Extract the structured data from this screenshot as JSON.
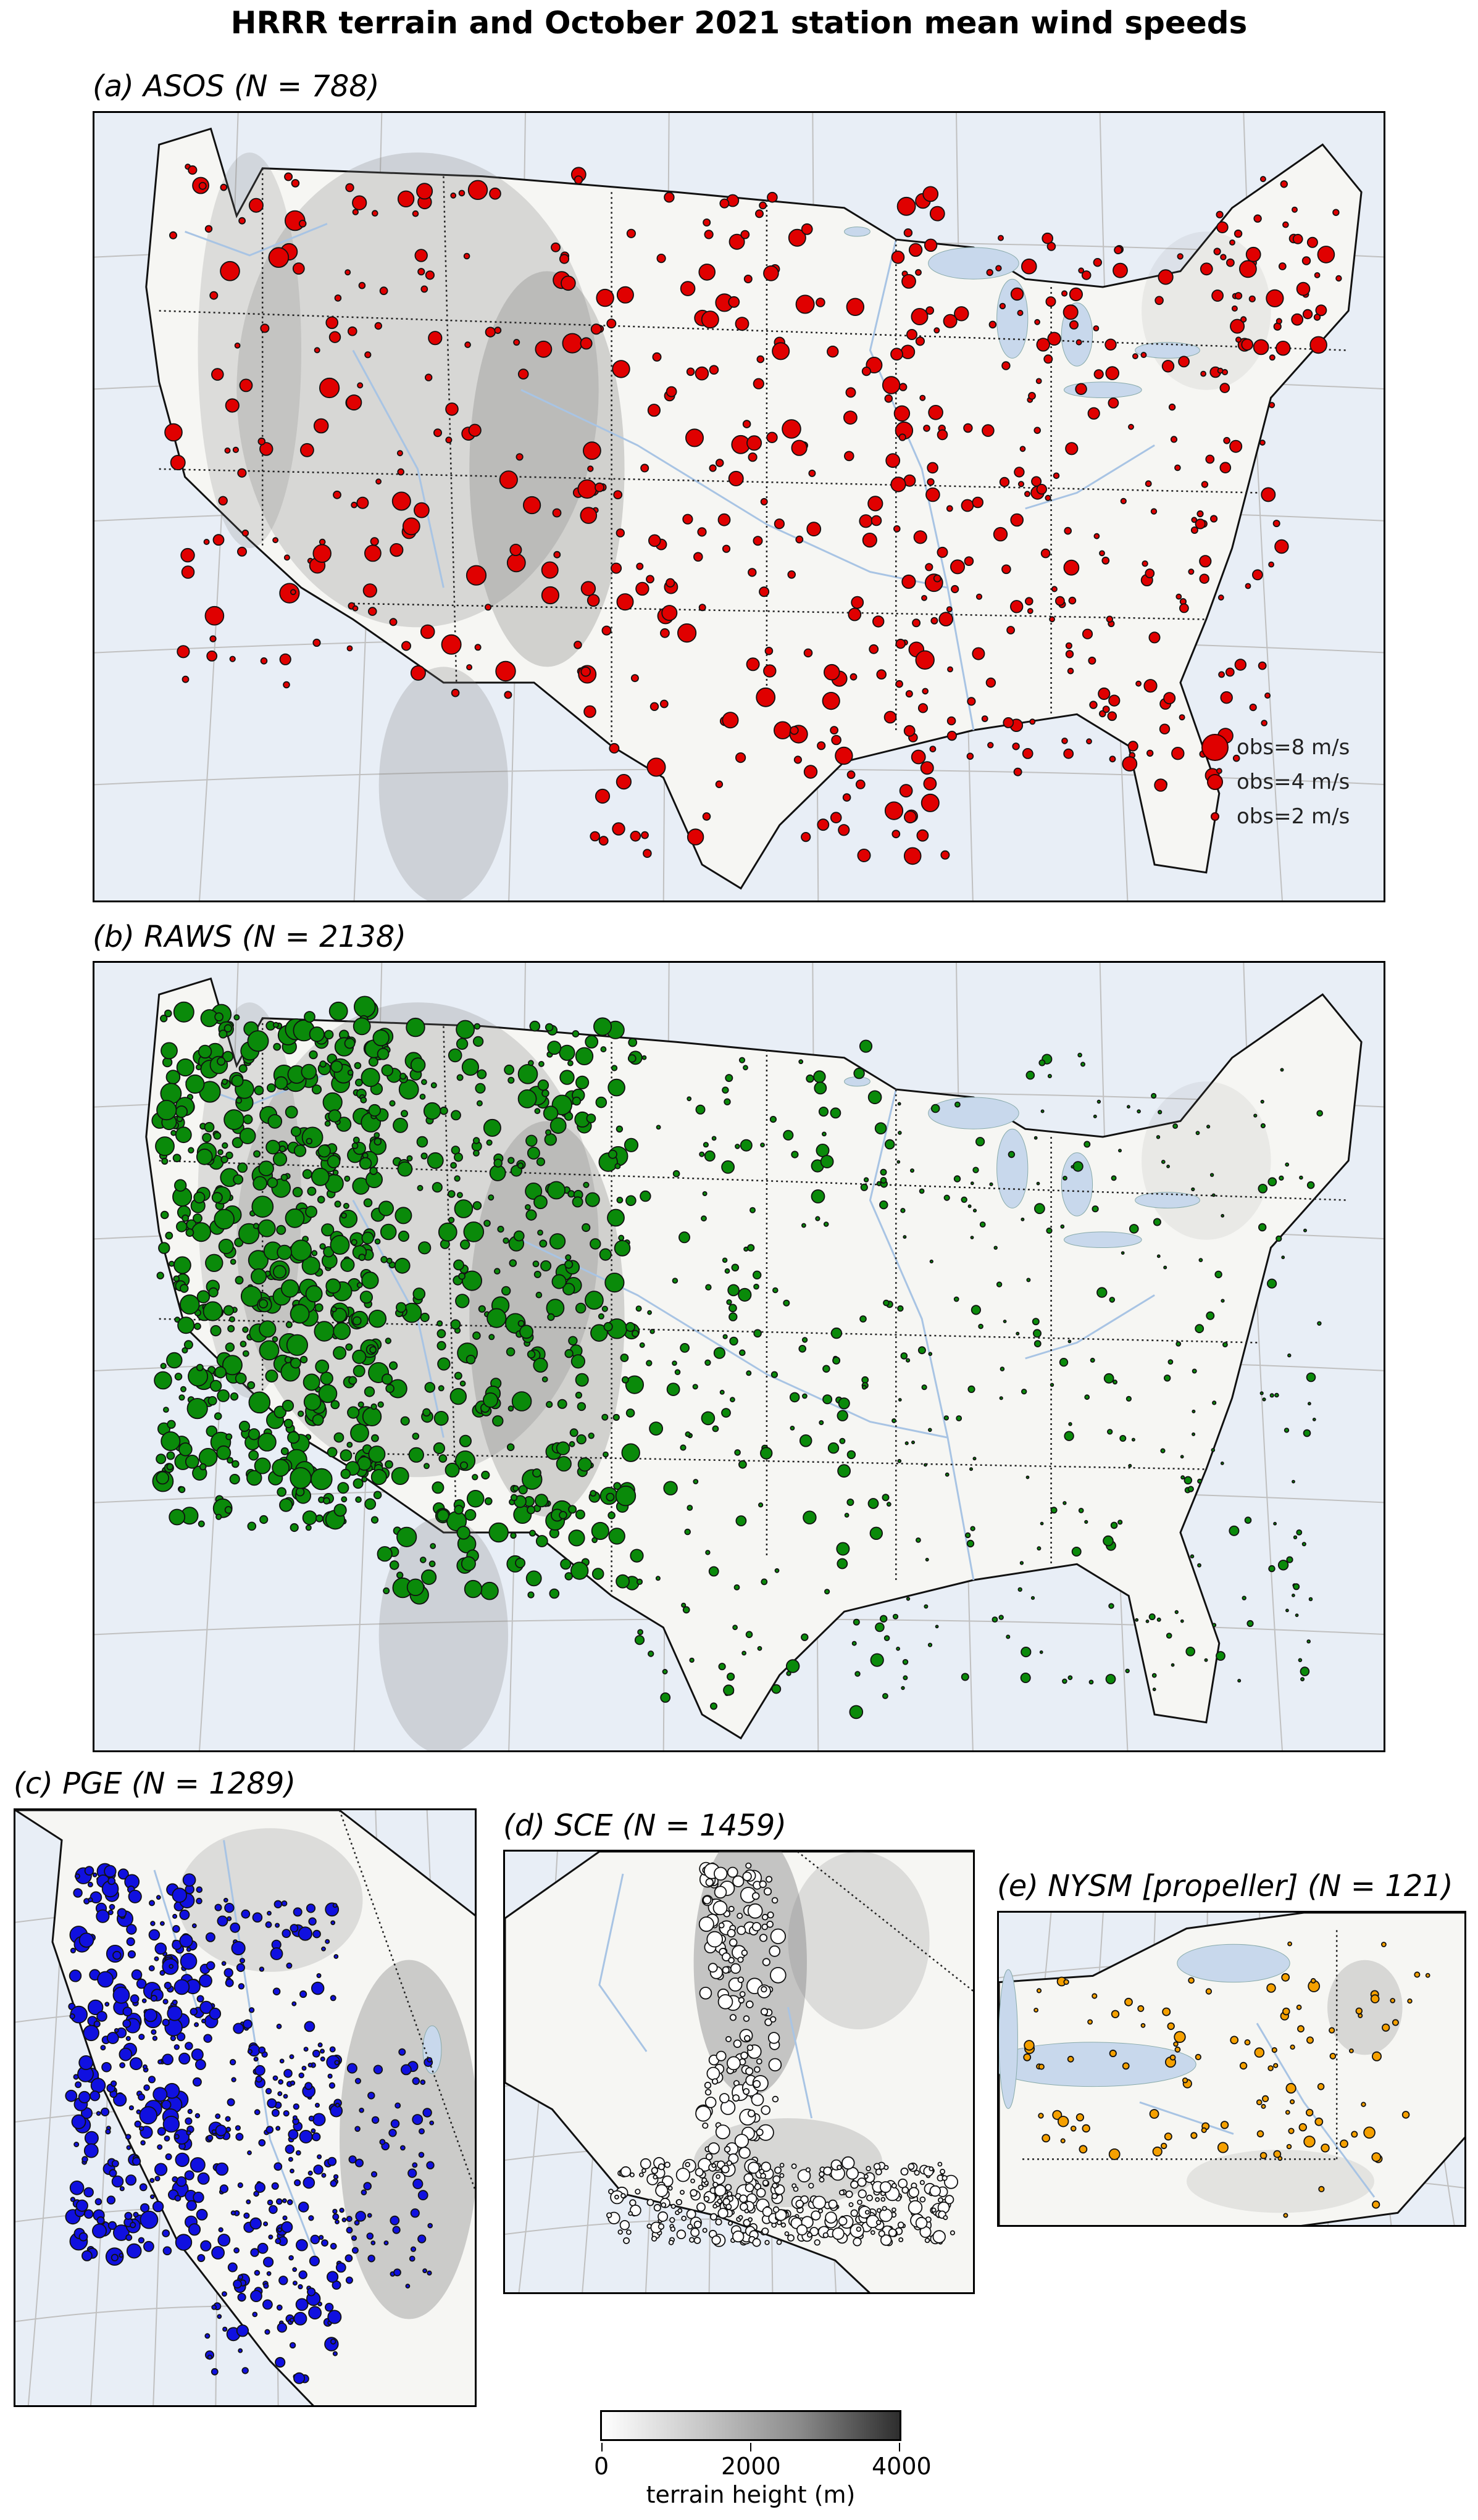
{
  "figure": {
    "title": "HRRR terrain and October 2021 station mean wind speeds"
  },
  "panels": {
    "a": {
      "label": "(a) ASOS (N = 788)",
      "color": "#e00000"
    },
    "b": {
      "label": "(b) RAWS (N = 2138)",
      "color": "#0a8a0a"
    },
    "c": {
      "label": "(c) PGE (N = 1289)",
      "color": "#1010e0"
    },
    "d": {
      "label": "(d) SCE (N = 1459)",
      "color": "#ffffff"
    },
    "e": {
      "label": "(e) NYSM [propeller] (N = 121)",
      "color": "#f5a000"
    }
  },
  "legend": {
    "items": [
      {
        "label": "obs=8 m/s",
        "speed": 8
      },
      {
        "label": "obs=4 m/s",
        "speed": 4
      },
      {
        "label": "obs=2 m/s",
        "speed": 2
      }
    ]
  },
  "colorbar": {
    "label": "terrain height (m)",
    "ticks": [
      "0",
      "2000",
      "4000"
    ],
    "range": [
      0,
      4000
    ],
    "colors": [
      "#ffffff",
      "#2e2e2e"
    ]
  },
  "colors": {
    "ocean": "#e8eef6",
    "land": "#f6f6f3",
    "lakes": "#c8d8ec",
    "rivers": "#a8c4e4",
    "grid": "#c0c0c0"
  }
}
